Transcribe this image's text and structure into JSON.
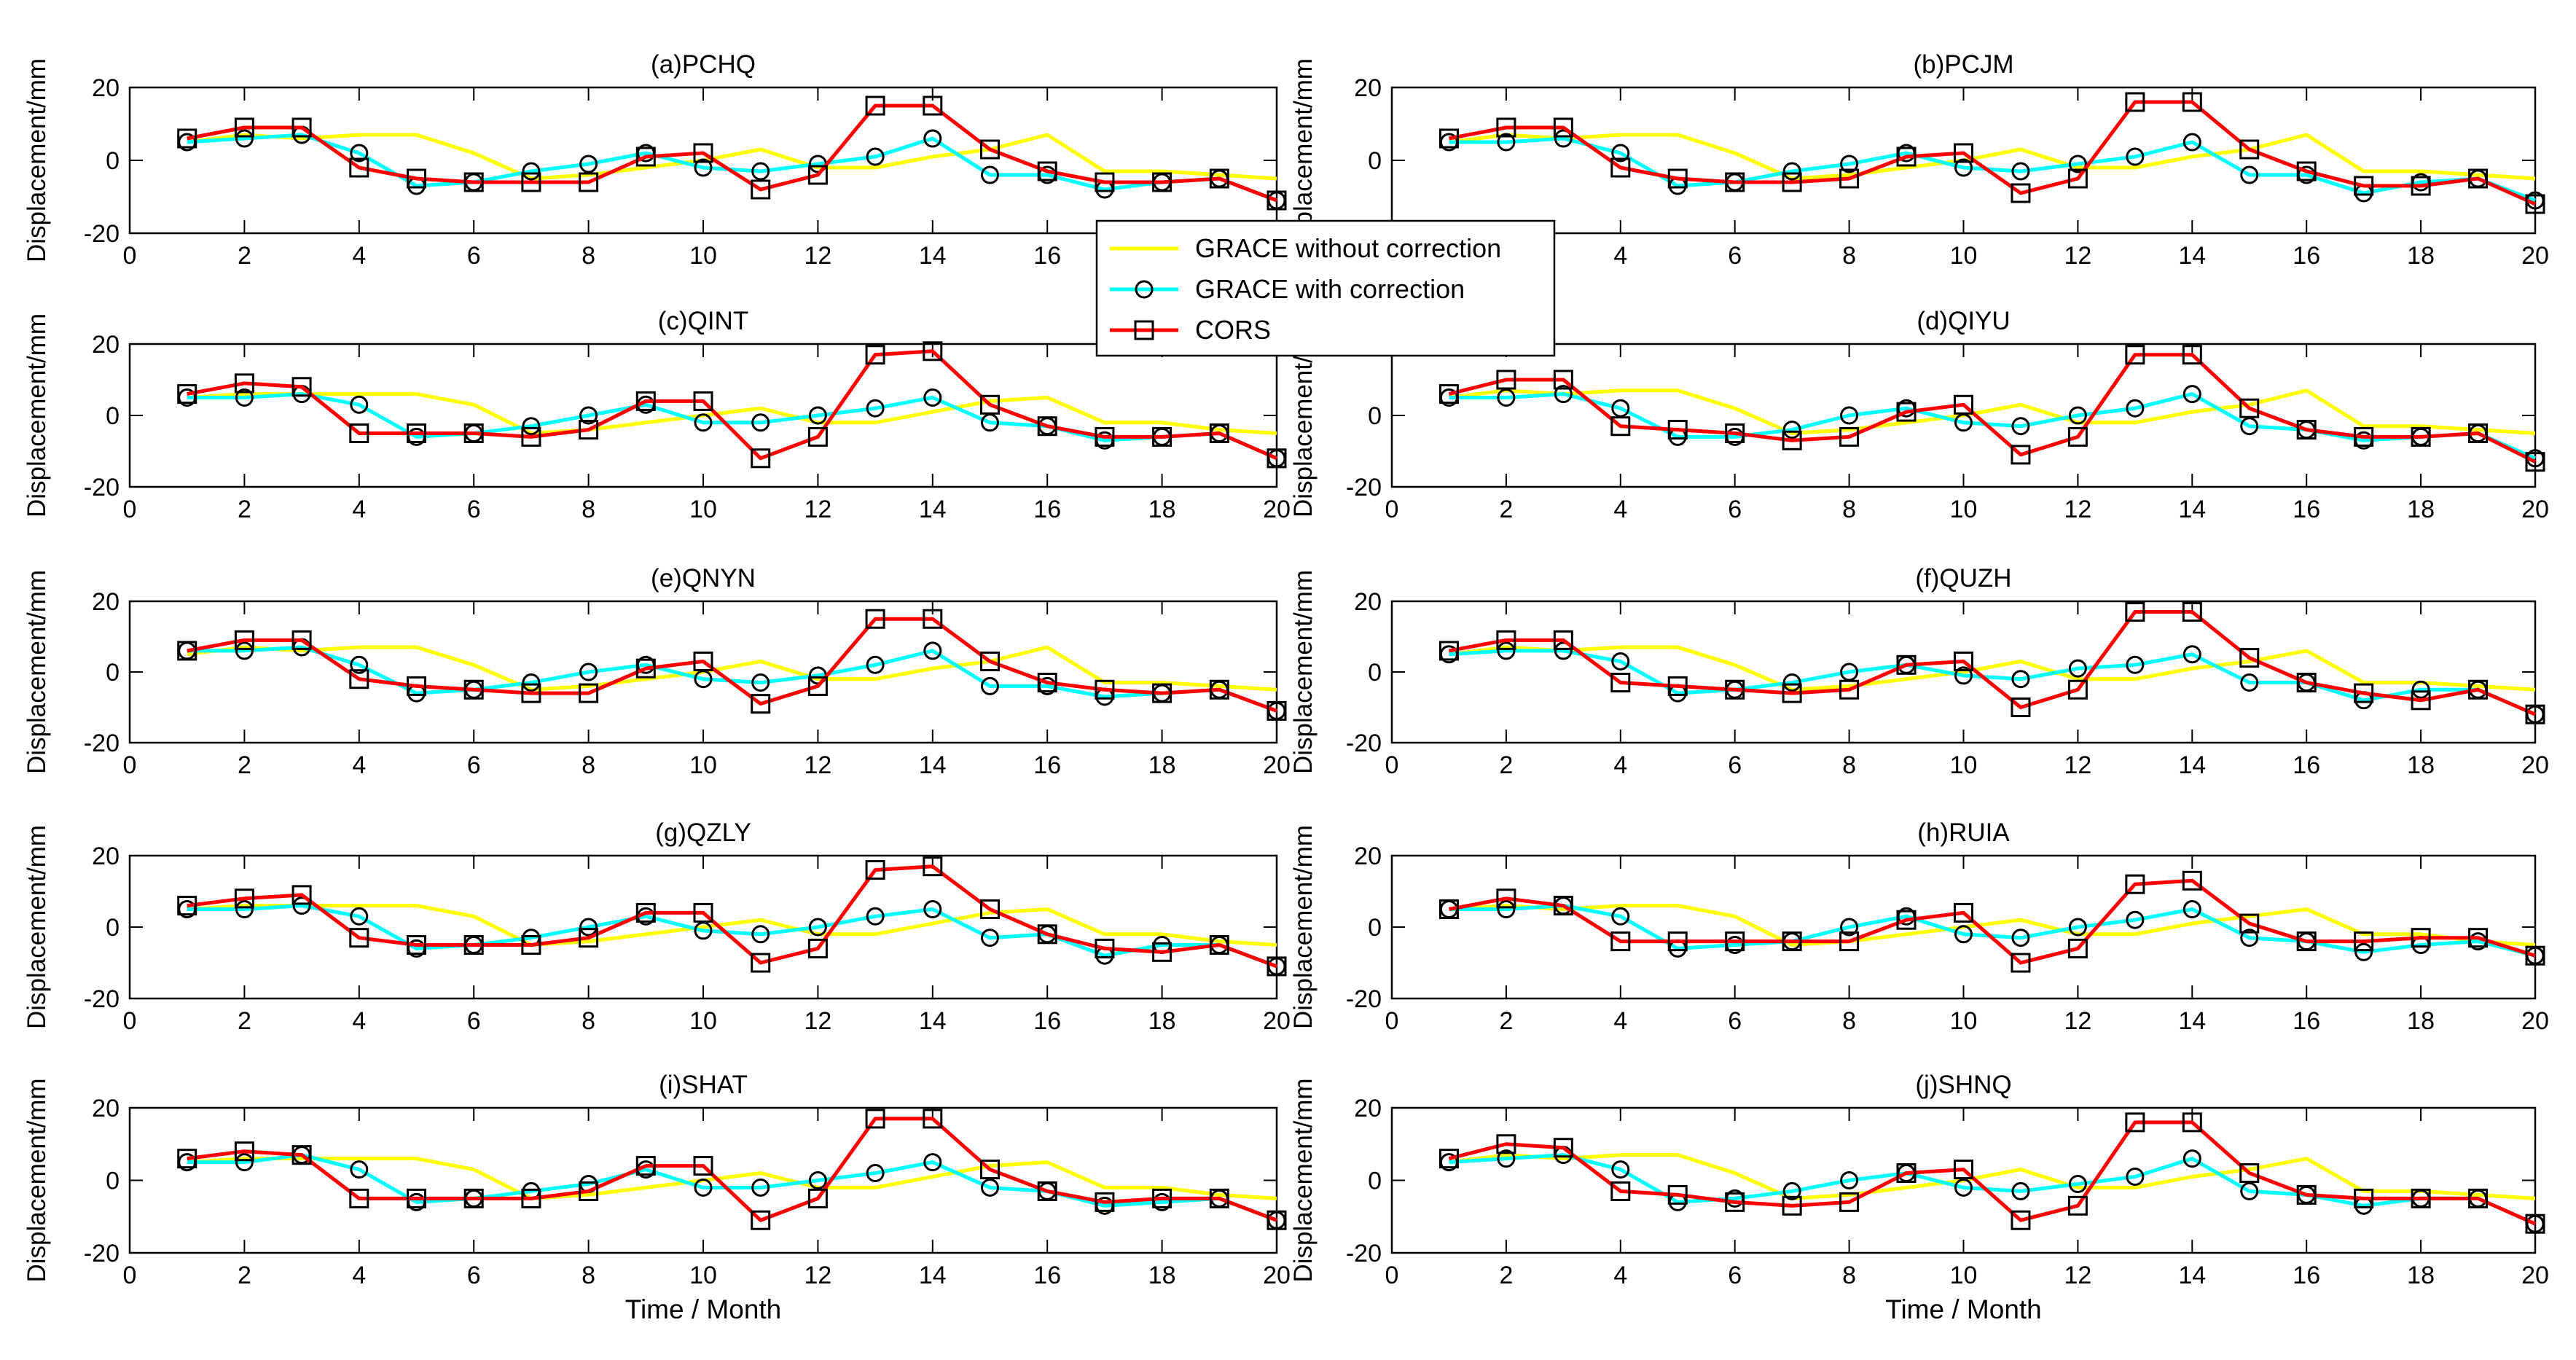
{
  "figure": {
    "x_axis_label": "Time / Month",
    "y_axis_label": "Displacement/mm",
    "legend": {
      "entries": [
        {
          "label": "GRACE without correction",
          "color": "#ffff00",
          "marker": "none"
        },
        {
          "label": "GRACE with correction",
          "color": "#00ffff",
          "marker": "circle"
        },
        {
          "label": "CORS",
          "color": "#ff0000",
          "marker": "square"
        }
      ]
    }
  },
  "chart_data": [
    {
      "type": "line",
      "title": "(a)PCHQ",
      "xlim": [
        0,
        20
      ],
      "ylim": [
        -20,
        20
      ],
      "xticks": [
        0,
        2,
        4,
        6,
        8,
        10,
        12,
        14,
        16,
        18,
        20
      ],
      "yticks": [
        20,
        0,
        -20
      ],
      "x": [
        1,
        2,
        3,
        4,
        5,
        6,
        7,
        8,
        9,
        10,
        11,
        12,
        13,
        14,
        15,
        16,
        17,
        18,
        19,
        20
      ],
      "series": [
        {
          "name": "GRACE without correction",
          "values": [
            5,
            7,
            6,
            7,
            7,
            2,
            -5,
            -4,
            -2,
            0,
            3,
            -2,
            -2,
            1,
            3,
            7,
            -3,
            -3,
            -4,
            -5
          ]
        },
        {
          "name": "GRACE with correction",
          "values": [
            5,
            6,
            7,
            2,
            -7,
            -6,
            -3,
            -1,
            2,
            -2,
            -3,
            -1,
            1,
            6,
            -4,
            -4,
            -8,
            -6,
            -5,
            -11
          ]
        },
        {
          "name": "CORS",
          "values": [
            6,
            9,
            9,
            -2,
            -5,
            -6,
            -6,
            -6,
            1,
            2,
            -8,
            -4,
            15,
            15,
            3,
            -3,
            -6,
            -6,
            -5,
            -11
          ]
        }
      ]
    },
    {
      "type": "line",
      "title": "(b)PCJM",
      "xlim": [
        0,
        20
      ],
      "ylim": [
        -20,
        20
      ],
      "xticks": [
        0,
        2,
        4,
        6,
        8,
        10,
        12,
        14,
        16,
        18,
        20
      ],
      "yticks": [
        20,
        0,
        -20
      ],
      "x": [
        1,
        2,
        3,
        4,
        5,
        6,
        7,
        8,
        9,
        10,
        11,
        12,
        13,
        14,
        15,
        16,
        17,
        18,
        19,
        20
      ],
      "series": [
        {
          "name": "GRACE without correction",
          "values": [
            5,
            7,
            6,
            7,
            7,
            2,
            -5,
            -4,
            -2,
            0,
            3,
            -2,
            -2,
            1,
            3,
            7,
            -3,
            -3,
            -4,
            -5
          ]
        },
        {
          "name": "GRACE with correction",
          "values": [
            5,
            5,
            6,
            2,
            -7,
            -6,
            -3,
            -1,
            2,
            -2,
            -3,
            -1,
            1,
            5,
            -4,
            -4,
            -9,
            -6,
            -5,
            -11
          ]
        },
        {
          "name": "CORS",
          "values": [
            6,
            9,
            9,
            -2,
            -5,
            -6,
            -6,
            -5,
            1,
            2,
            -9,
            -5,
            16,
            16,
            3,
            -3,
            -7,
            -7,
            -5,
            -12
          ]
        }
      ]
    },
    {
      "type": "line",
      "title": "(c)QINT",
      "xlim": [
        0,
        20
      ],
      "ylim": [
        -20,
        20
      ],
      "xticks": [
        0,
        2,
        4,
        6,
        8,
        10,
        12,
        14,
        16,
        18,
        20
      ],
      "yticks": [
        20,
        0,
        -20
      ],
      "x": [
        1,
        2,
        3,
        4,
        5,
        6,
        7,
        8,
        9,
        10,
        11,
        12,
        13,
        14,
        15,
        16,
        17,
        18,
        19,
        20
      ],
      "series": [
        {
          "name": "GRACE without correction",
          "values": [
            5,
            6,
            6,
            6,
            6,
            3,
            -5,
            -4,
            -2,
            0,
            2,
            -2,
            -2,
            1,
            4,
            5,
            -2,
            -2,
            -4,
            -5
          ]
        },
        {
          "name": "GRACE with correction",
          "values": [
            5,
            5,
            6,
            3,
            -6,
            -5,
            -3,
            0,
            3,
            -2,
            -2,
            0,
            2,
            5,
            -2,
            -3,
            -7,
            -6,
            -5,
            -12
          ]
        },
        {
          "name": "CORS",
          "values": [
            6,
            9,
            8,
            -5,
            -5,
            -5,
            -6,
            -4,
            4,
            4,
            -12,
            -6,
            17,
            18,
            3,
            -3,
            -6,
            -6,
            -5,
            -12
          ]
        }
      ]
    },
    {
      "type": "line",
      "title": "(d)QIYU",
      "xlim": [
        0,
        20
      ],
      "ylim": [
        -20,
        20
      ],
      "xticks": [
        0,
        2,
        4,
        6,
        8,
        10,
        12,
        14,
        16,
        18,
        20
      ],
      "yticks": [
        0,
        -20
      ],
      "x": [
        1,
        2,
        3,
        4,
        5,
        6,
        7,
        8,
        9,
        10,
        11,
        12,
        13,
        14,
        15,
        16,
        17,
        18,
        19,
        20
      ],
      "series": [
        {
          "name": "GRACE without correction",
          "values": [
            5,
            7,
            6,
            7,
            7,
            2,
            -5,
            -4,
            -2,
            0,
            3,
            -2,
            -2,
            1,
            3,
            7,
            -3,
            -3,
            -4,
            -5
          ]
        },
        {
          "name": "GRACE with correction",
          "values": [
            5,
            5,
            6,
            2,
            -6,
            -6,
            -4,
            0,
            2,
            -2,
            -3,
            0,
            2,
            6,
            -3,
            -4,
            -7,
            -6,
            -5,
            -12
          ]
        },
        {
          "name": "CORS",
          "values": [
            6,
            10,
            10,
            -3,
            -4,
            -5,
            -7,
            -6,
            1,
            3,
            -11,
            -6,
            17,
            17,
            2,
            -4,
            -6,
            -6,
            -5,
            -13
          ]
        }
      ]
    },
    {
      "type": "line",
      "title": "(e)QNYN",
      "xlim": [
        0,
        20
      ],
      "ylim": [
        -20,
        20
      ],
      "xticks": [
        0,
        2,
        4,
        6,
        8,
        10,
        12,
        14,
        16,
        18,
        20
      ],
      "yticks": [
        20,
        0,
        -20
      ],
      "x": [
        1,
        2,
        3,
        4,
        5,
        6,
        7,
        8,
        9,
        10,
        11,
        12,
        13,
        14,
        15,
        16,
        17,
        18,
        19,
        20
      ],
      "series": [
        {
          "name": "GRACE without correction",
          "values": [
            5,
            7,
            6,
            7,
            7,
            2,
            -5,
            -4,
            -2,
            0,
            3,
            -2,
            -2,
            1,
            3,
            7,
            -3,
            -3,
            -4,
            -5
          ]
        },
        {
          "name": "GRACE with correction",
          "values": [
            6,
            6,
            7,
            2,
            -6,
            -5,
            -3,
            0,
            2,
            -2,
            -3,
            -1,
            2,
            6,
            -4,
            -4,
            -7,
            -6,
            -5,
            -11
          ]
        },
        {
          "name": "CORS",
          "values": [
            6,
            9,
            9,
            -2,
            -4,
            -5,
            -6,
            -6,
            1,
            3,
            -9,
            -4,
            15,
            15,
            3,
            -3,
            -5,
            -6,
            -5,
            -11
          ]
        }
      ]
    },
    {
      "type": "line",
      "title": "(f)QUZH",
      "xlim": [
        0,
        20
      ],
      "ylim": [
        -20,
        20
      ],
      "xticks": [
        0,
        2,
        4,
        6,
        8,
        10,
        12,
        14,
        16,
        18,
        20
      ],
      "yticks": [
        20,
        0,
        -20
      ],
      "x": [
        1,
        2,
        3,
        4,
        5,
        6,
        7,
        8,
        9,
        10,
        11,
        12,
        13,
        14,
        15,
        16,
        17,
        18,
        19,
        20
      ],
      "series": [
        {
          "name": "GRACE without correction",
          "values": [
            5,
            7,
            6,
            7,
            7,
            2,
            -5,
            -4,
            -2,
            0,
            3,
            -2,
            -2,
            1,
            3,
            6,
            -3,
            -3,
            -4,
            -5
          ]
        },
        {
          "name": "GRACE with correction",
          "values": [
            5,
            6,
            6,
            3,
            -6,
            -5,
            -3,
            0,
            2,
            -1,
            -2,
            1,
            2,
            5,
            -3,
            -3,
            -8,
            -5,
            -5,
            -12
          ]
        },
        {
          "name": "CORS",
          "values": [
            6,
            9,
            9,
            -3,
            -4,
            -5,
            -6,
            -5,
            2,
            3,
            -10,
            -5,
            17,
            17,
            4,
            -3,
            -6,
            -8,
            -5,
            -12
          ]
        }
      ]
    },
    {
      "type": "line",
      "title": "(g)QZLY",
      "xlim": [
        0,
        20
      ],
      "ylim": [
        -20,
        20
      ],
      "xticks": [
        0,
        2,
        4,
        6,
        8,
        10,
        12,
        14,
        16,
        18,
        20
      ],
      "yticks": [
        20,
        0,
        -20
      ],
      "x": [
        1,
        2,
        3,
        4,
        5,
        6,
        7,
        8,
        9,
        10,
        11,
        12,
        13,
        14,
        15,
        16,
        17,
        18,
        19,
        20
      ],
      "series": [
        {
          "name": "GRACE without correction",
          "values": [
            5,
            6,
            6,
            6,
            6,
            3,
            -5,
            -4,
            -2,
            0,
            2,
            -2,
            -2,
            1,
            4,
            5,
            -2,
            -2,
            -4,
            -5
          ]
        },
        {
          "name": "GRACE with correction",
          "values": [
            5,
            5,
            6,
            3,
            -6,
            -5,
            -3,
            0,
            3,
            -1,
            -2,
            0,
            3,
            5,
            -3,
            -2,
            -8,
            -5,
            -5,
            -11
          ]
        },
        {
          "name": "CORS",
          "values": [
            6,
            8,
            9,
            -3,
            -5,
            -5,
            -5,
            -3,
            4,
            4,
            -10,
            -6,
            16,
            17,
            5,
            -2,
            -6,
            -7,
            -5,
            -11
          ]
        }
      ]
    },
    {
      "type": "line",
      "title": "(h)RUIA",
      "xlim": [
        0,
        20
      ],
      "ylim": [
        -20,
        20
      ],
      "xticks": [
        0,
        2,
        4,
        6,
        8,
        10,
        12,
        14,
        16,
        18,
        20
      ],
      "yticks": [
        20,
        0,
        -20
      ],
      "x": [
        1,
        2,
        3,
        4,
        5,
        6,
        7,
        8,
        9,
        10,
        11,
        12,
        13,
        14,
        15,
        16,
        17,
        18,
        19,
        20
      ],
      "series": [
        {
          "name": "GRACE without correction",
          "values": [
            5,
            6,
            5,
            6,
            6,
            3,
            -5,
            -4,
            -2,
            0,
            2,
            -2,
            -2,
            1,
            3,
            5,
            -2,
            -2,
            -4,
            -5
          ]
        },
        {
          "name": "GRACE with correction",
          "values": [
            5,
            5,
            6,
            3,
            -6,
            -5,
            -4,
            0,
            3,
            -2,
            -3,
            0,
            2,
            5,
            -3,
            -4,
            -7,
            -5,
            -4,
            -8
          ]
        },
        {
          "name": "CORS",
          "values": [
            5,
            8,
            6,
            -4,
            -4,
            -4,
            -4,
            -4,
            2,
            4,
            -10,
            -6,
            12,
            13,
            1,
            -4,
            -4,
            -3,
            -3,
            -8
          ]
        }
      ]
    },
    {
      "type": "line",
      "title": "(i)SHAT",
      "xlim": [
        0,
        20
      ],
      "ylim": [
        -20,
        20
      ],
      "xticks": [
        0,
        2,
        4,
        6,
        8,
        10,
        12,
        14,
        16,
        18,
        20
      ],
      "yticks": [
        20,
        0,
        -20
      ],
      "x": [
        1,
        2,
        3,
        4,
        5,
        6,
        7,
        8,
        9,
        10,
        11,
        12,
        13,
        14,
        15,
        16,
        17,
        18,
        19,
        20
      ],
      "series": [
        {
          "name": "GRACE without correction",
          "values": [
            5,
            6,
            6,
            6,
            6,
            3,
            -5,
            -4,
            -2,
            0,
            2,
            -2,
            -2,
            1,
            4,
            5,
            -2,
            -2,
            -4,
            -5
          ]
        },
        {
          "name": "GRACE with correction",
          "values": [
            5,
            5,
            7,
            3,
            -6,
            -5,
            -3,
            -1,
            3,
            -2,
            -2,
            0,
            2,
            5,
            -2,
            -3,
            -7,
            -6,
            -5,
            -11
          ]
        },
        {
          "name": "CORS",
          "values": [
            6,
            8,
            7,
            -5,
            -5,
            -5,
            -5,
            -3,
            4,
            4,
            -11,
            -5,
            17,
            17,
            3,
            -3,
            -6,
            -5,
            -5,
            -11
          ]
        }
      ]
    },
    {
      "type": "line",
      "title": "(j)SHNQ",
      "xlim": [
        0,
        20
      ],
      "ylim": [
        -20,
        20
      ],
      "xticks": [
        0,
        2,
        4,
        6,
        8,
        10,
        12,
        14,
        16,
        18,
        20
      ],
      "yticks": [
        20,
        0,
        -20
      ],
      "x": [
        1,
        2,
        3,
        4,
        5,
        6,
        7,
        8,
        9,
        10,
        11,
        12,
        13,
        14,
        15,
        16,
        17,
        18,
        19,
        20
      ],
      "series": [
        {
          "name": "GRACE without correction",
          "values": [
            5,
            7,
            6,
            7,
            7,
            2,
            -5,
            -4,
            -2,
            0,
            3,
            -2,
            -2,
            1,
            3,
            6,
            -3,
            -3,
            -4,
            -5
          ]
        },
        {
          "name": "GRACE with correction",
          "values": [
            5,
            6,
            7,
            3,
            -6,
            -5,
            -3,
            0,
            2,
            -2,
            -3,
            -1,
            1,
            6,
            -3,
            -4,
            -7,
            -5,
            -5,
            -12
          ]
        },
        {
          "name": "CORS",
          "values": [
            6,
            10,
            9,
            -3,
            -4,
            -6,
            -7,
            -6,
            2,
            3,
            -11,
            -7,
            16,
            16,
            2,
            -4,
            -5,
            -5,
            -5,
            -12
          ]
        }
      ]
    }
  ]
}
